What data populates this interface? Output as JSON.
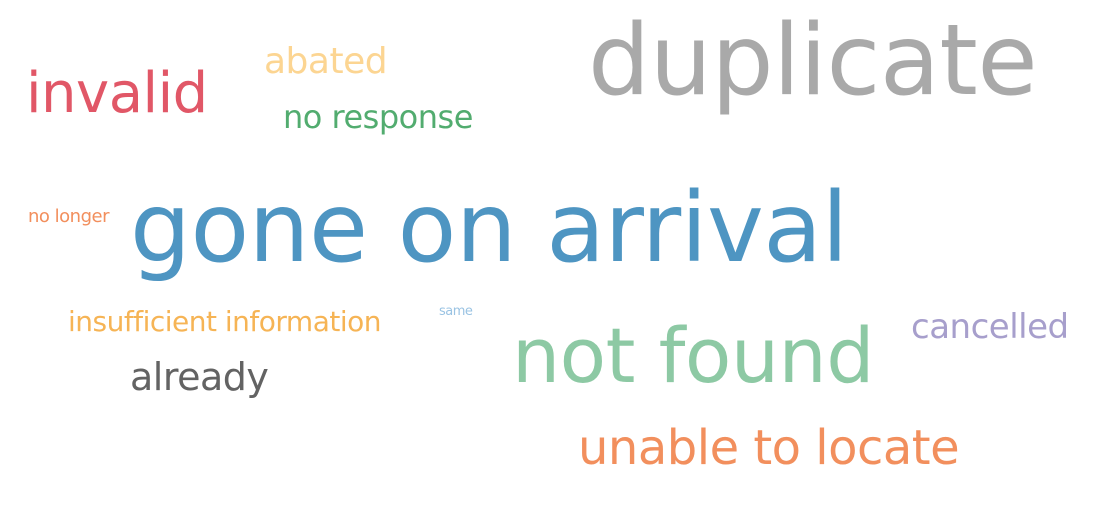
{
  "chart_data": {
    "type": "wordcloud",
    "words": [
      {
        "text": "duplicate",
        "color": "#a9a9a9"
      },
      {
        "text": "gone on arrival",
        "color": "#4e95c2"
      },
      {
        "text": "not found",
        "color": "#8dc9a4"
      },
      {
        "text": "invalid",
        "color": "#e15767"
      },
      {
        "text": "unable to locate",
        "color": "#f28f5d"
      },
      {
        "text": "abated",
        "color": "#fcd592"
      },
      {
        "text": "no response",
        "color": "#52ac6f"
      },
      {
        "text": "cancelled",
        "color": "#a79fcc"
      },
      {
        "text": "already",
        "color": "#636363"
      },
      {
        "text": "insufficient information",
        "color": "#f6b455"
      },
      {
        "text": "no longer",
        "color": "#f28f5d"
      },
      {
        "text": "same",
        "color": "#9ac3e3"
      }
    ]
  }
}
